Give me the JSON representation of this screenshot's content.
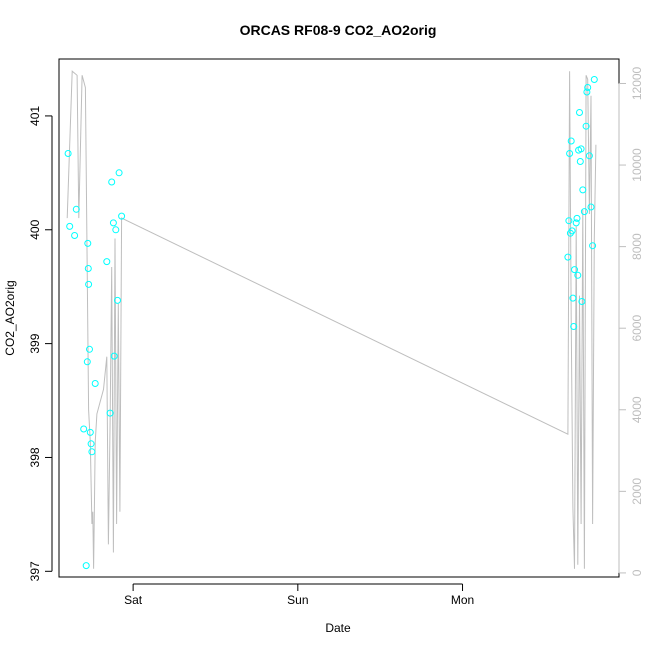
{
  "chart_data": {
    "type": "scatter",
    "title": "ORCAS RF08-9 CO2_AO2orig",
    "xlabel": "Date",
    "ylabel": "CO2_AO2orig",
    "x_ticks": [
      "Sat",
      "Sun",
      "Mon"
    ],
    "x_unit": "days since Friday 00:00",
    "xlim": [
      0.55,
      3.95
    ],
    "ylim": [
      396.95,
      401.5
    ],
    "y_ticks": [
      397,
      398,
      399,
      400,
      401
    ],
    "y2lim": [
      -100,
      12600
    ],
    "y2_ticks": [
      0,
      2000,
      4000,
      6000,
      8000,
      10000,
      12000
    ],
    "grid": false,
    "legend": "none",
    "colors": {
      "points": "#00ffff",
      "line": "#bebebe",
      "axis": "#000000"
    },
    "series": [
      {
        "kind": "points",
        "axis": "left",
        "x": [
          0.605,
          0.615,
          0.645,
          0.655,
          0.7,
          0.715,
          0.722,
          0.725,
          0.728,
          0.73,
          0.735,
          0.74,
          0.745,
          0.75,
          0.77,
          0.84,
          0.86,
          0.87,
          0.88,
          0.885,
          0.895,
          0.905,
          0.915,
          0.93,
          3.64,
          3.646,
          3.65,
          3.655,
          3.66,
          3.665,
          3.67,
          3.675,
          3.68,
          3.69,
          3.695,
          3.7,
          3.705,
          3.71,
          3.715,
          3.72,
          3.725,
          3.73,
          3.74,
          3.75,
          3.755,
          3.76,
          3.77,
          3.78,
          3.79,
          3.8
        ],
        "y": [
          400.67,
          400.03,
          399.95,
          400.18,
          398.25,
          397.05,
          398.84,
          399.88,
          399.66,
          399.52,
          398.95,
          398.22,
          398.12,
          398.05,
          398.65,
          399.72,
          398.39,
          400.42,
          400.06,
          398.89,
          400.0,
          399.38,
          400.5,
          400.12,
          399.76,
          400.08,
          400.67,
          399.97,
          400.78,
          399.99,
          399.4,
          399.15,
          399.65,
          400.06,
          400.1,
          399.6,
          400.7,
          401.03,
          400.6,
          400.71,
          399.37,
          400.35,
          400.16,
          400.91,
          401.21,
          401.25,
          400.65,
          400.2,
          399.86,
          401.32
        ]
      },
      {
        "kind": "line",
        "axis": "right",
        "x": [
          0.6,
          0.63,
          0.66,
          0.67,
          0.69,
          0.71,
          0.73,
          0.74,
          0.75,
          0.755,
          0.76,
          0.765,
          0.77,
          0.78,
          0.8,
          0.82,
          0.84,
          0.85,
          0.86,
          0.87,
          0.88,
          0.89,
          0.9,
          0.91,
          0.92,
          0.93,
          3.64,
          3.65,
          3.66,
          3.67,
          3.68,
          3.69,
          3.7,
          3.71,
          3.72,
          3.73,
          3.74,
          3.75,
          3.76,
          3.77,
          3.78,
          3.79,
          3.8,
          3.81
        ],
        "y": [
          8700,
          12300,
          12200,
          8700,
          12200,
          11900,
          4000,
          3200,
          1200,
          1500,
          100,
          1600,
          3200,
          3900,
          4200,
          4500,
          5300,
          700,
          3700,
          7500,
          500,
          8200,
          1200,
          6600,
          1500,
          8700,
          3400,
          12300,
          6200,
          1600,
          100,
          8500,
          200,
          6800,
          1200,
          8900,
          100,
          12200,
          12100,
          8800,
          11700,
          1200,
          8200,
          10500
        ]
      }
    ]
  }
}
